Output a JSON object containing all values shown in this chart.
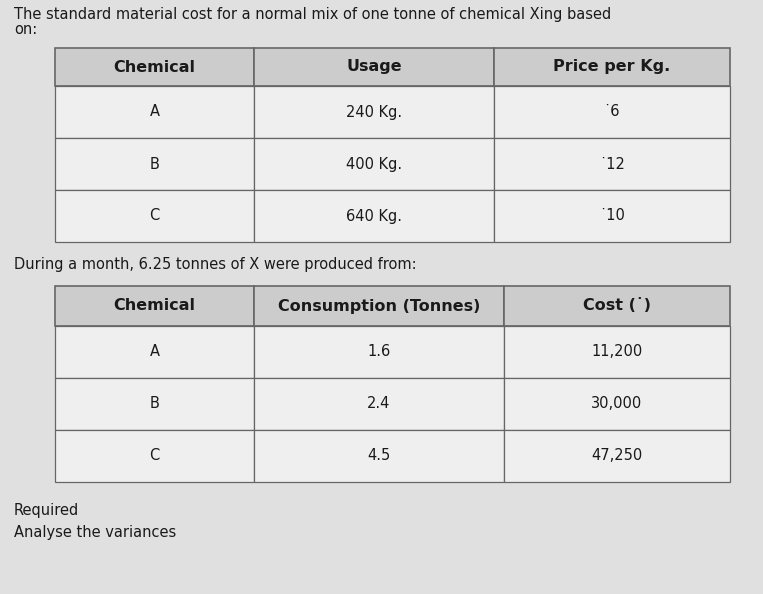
{
  "intro_line1": "The standard material cost for a normal mix of one tonne of chemical Xing based",
  "intro_line2": "on:",
  "table1_headers": [
    "Chemical",
    "Usage",
    "Price per Kg."
  ],
  "table1_rows": [
    [
      "A",
      "240 Kg.",
      "˙6"
    ],
    [
      "B",
      "400 Kg.",
      "˙12"
    ],
    [
      "C",
      "640 Kg.",
      "˙10"
    ]
  ],
  "middle_text": "During a month, 6.25 tonnes of X were produced from:",
  "table2_headers": [
    "Chemical",
    "Consumption (Tonnes)",
    "Cost (˙)"
  ],
  "table2_rows": [
    [
      "A",
      "1.6",
      "11,200"
    ],
    [
      "B",
      "2.4",
      "30,000"
    ],
    [
      "C",
      "4.5",
      "47,250"
    ]
  ],
  "footer_text1": "Required",
  "footer_text2": "Analyse the variances",
  "bg_color": "#e0e0e0",
  "table_bg": "#efefef",
  "header_bg": "#cccccc",
  "text_color": "#1a1a1a",
  "border_color": "#666666",
  "font_size_body": 10.5,
  "font_size_header": 11.5
}
